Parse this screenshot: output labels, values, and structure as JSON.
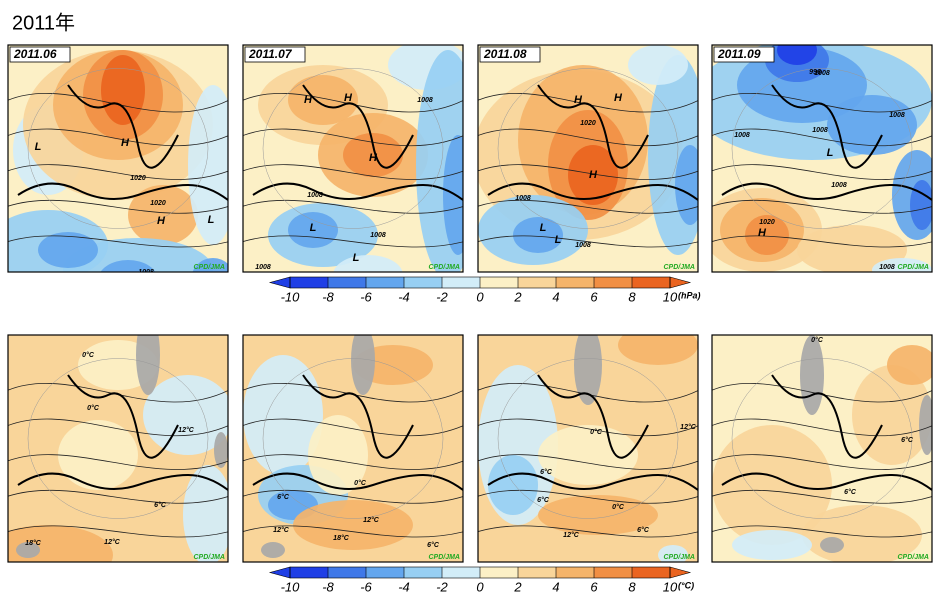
{
  "title": "2011年",
  "credit": "CPD/JMA",
  "top_panels": [
    {
      "label": "2011.06",
      "texts": [
        "L",
        "H",
        "1020",
        "1020",
        "H",
        "L",
        "1008",
        "L",
        "L"
      ]
    },
    {
      "label": "2011.07",
      "texts": [
        "H",
        "H",
        "1008",
        "H",
        "1008",
        "L",
        "1008",
        "L",
        "1008"
      ]
    },
    {
      "label": "2011.08",
      "texts": [
        "H",
        "H",
        "1020",
        "H",
        "1008",
        "L",
        "1008",
        "L"
      ]
    },
    {
      "label": "2011.09",
      "texts": [
        "996",
        "1008",
        "1008",
        "1008",
        "1008",
        "L",
        "1008",
        "1020",
        "H",
        "1008"
      ]
    }
  ],
  "bottom_panels": [
    {
      "texts": [
        "0°C",
        "0°C",
        "12°C",
        "6°C",
        "12°C",
        "18°C"
      ]
    },
    {
      "texts": [
        "0°C",
        "6°C",
        "12°C",
        "12°C",
        "18°C",
        "6°C"
      ]
    },
    {
      "texts": [
        "0°C",
        "12°C",
        "6°C",
        "6°C",
        "0°C",
        "12°C",
        "6°C"
      ]
    },
    {
      "texts": [
        "0°C",
        "6°C",
        "6°C"
      ]
    }
  ],
  "colorbars": [
    {
      "ticks": [
        -10,
        -8,
        -6,
        -4,
        -2,
        0,
        2,
        4,
        6,
        8,
        10
      ],
      "unit": "(hPa)",
      "colors": [
        "#1f3fe6",
        "#3f78e8",
        "#63a6ee",
        "#97cff3",
        "#d2edf8",
        "#fcf0c6",
        "#f9d59a",
        "#f5b46a",
        "#f18f44",
        "#ea6420"
      ]
    },
    {
      "ticks": [
        -10,
        -8,
        -6,
        -4,
        -2,
        0,
        2,
        4,
        6,
        8,
        10
      ],
      "unit": "(°C)",
      "colors": [
        "#1f3fe6",
        "#3f78e8",
        "#63a6ee",
        "#97cff3",
        "#d2edf8",
        "#fcf0c6",
        "#f9d59a",
        "#f5b46a",
        "#f18f44",
        "#ea6420"
      ]
    }
  ]
}
